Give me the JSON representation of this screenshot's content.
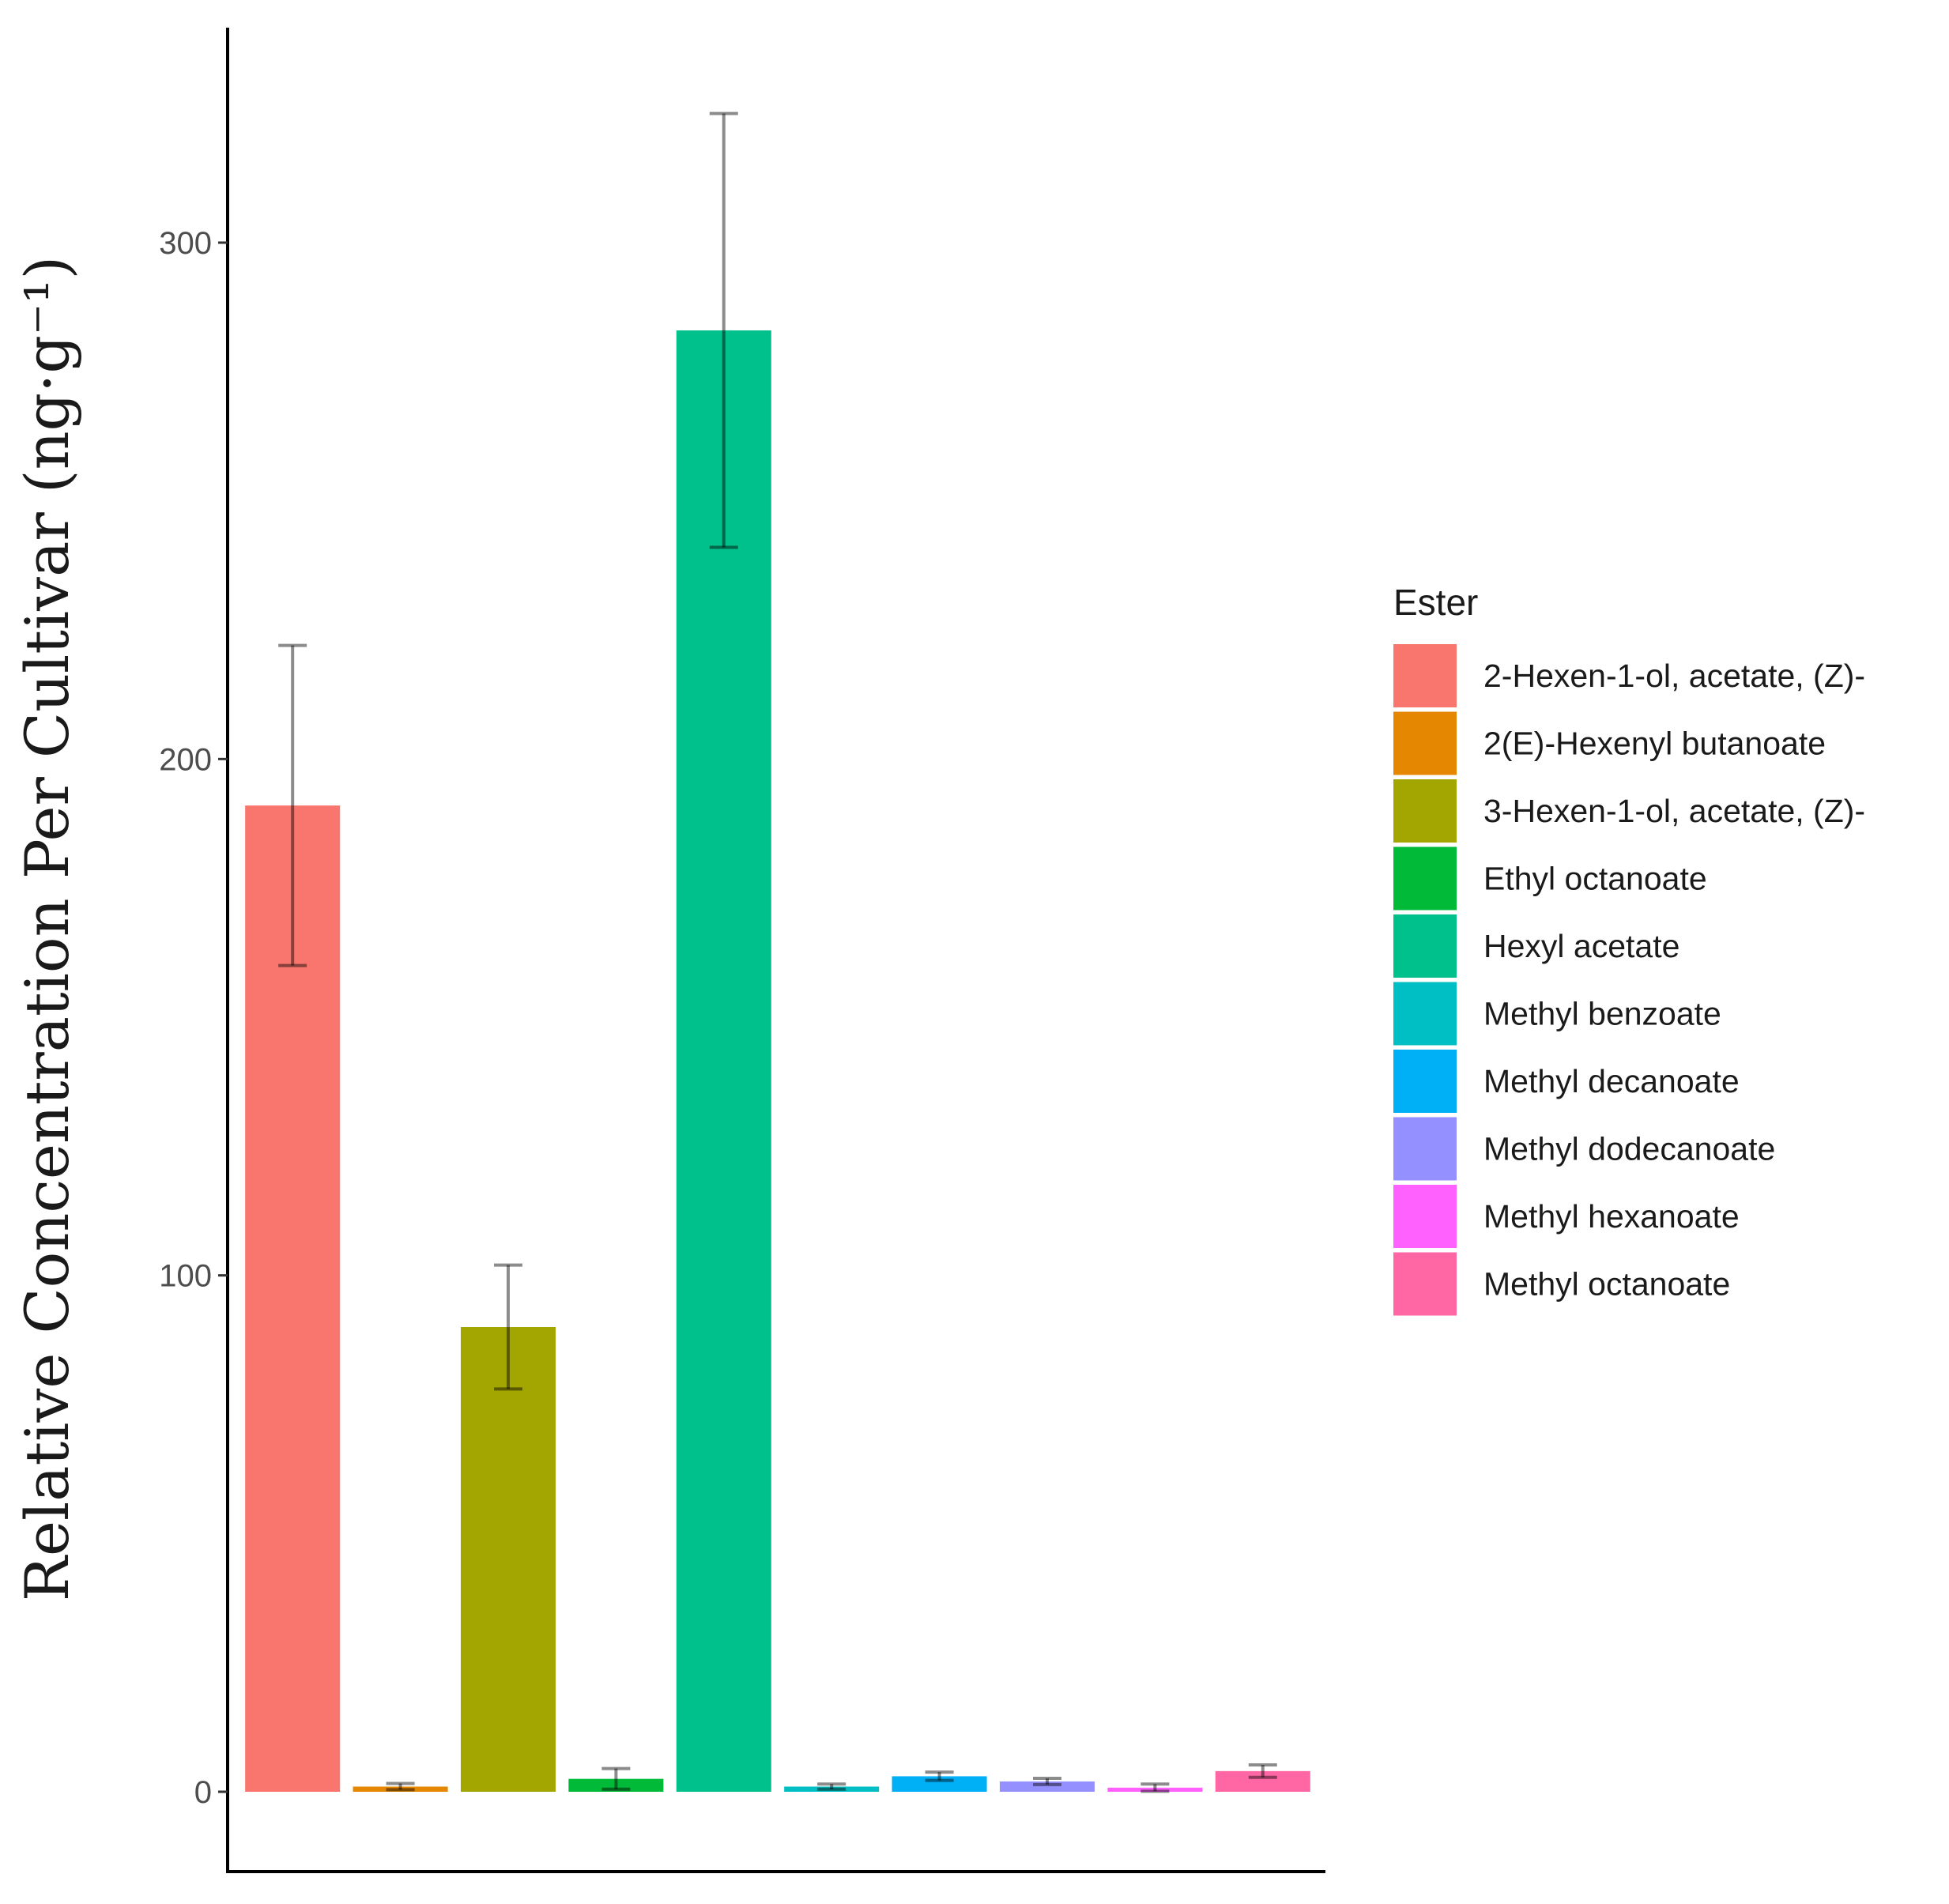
{
  "chart_data": {
    "type": "bar",
    "title": "",
    "xlabel": "",
    "ylabel": "Relative Concentration Per Cultivar (ng·g⁻¹)",
    "ylim": [
      -16,
      342
    ],
    "yticks": [
      0,
      100,
      200,
      300
    ],
    "grid": false,
    "legend": {
      "title": "Ester",
      "position": "right"
    },
    "categories": [
      "2-Hexen-1-ol, acetate, (Z)-",
      "2(E)-Hexenyl butanoate",
      "3-Hexen-1-ol, acetate, (Z)-",
      "Ethyl octanoate",
      "Hexyl acetate",
      "Methyl benzoate",
      "Methyl decanoate",
      "Methyl dodecanoate",
      "Methyl hexanoate",
      "Methyl octanoate"
    ],
    "values": [
      191,
      1,
      90,
      2.5,
      283,
      1,
      3,
      2,
      0.8,
      4
    ],
    "errors": [
      31,
      0.6,
      12,
      2,
      42,
      0.5,
      0.8,
      0.6,
      0.7,
      1.2
    ],
    "colors": [
      "#F8766D",
      "#E58700",
      "#A3A500",
      "#00BA38",
      "#00C08B",
      "#00BFC4",
      "#00B0F6",
      "#9590FF",
      "#FF61FF",
      "#FF67A4"
    ]
  }
}
